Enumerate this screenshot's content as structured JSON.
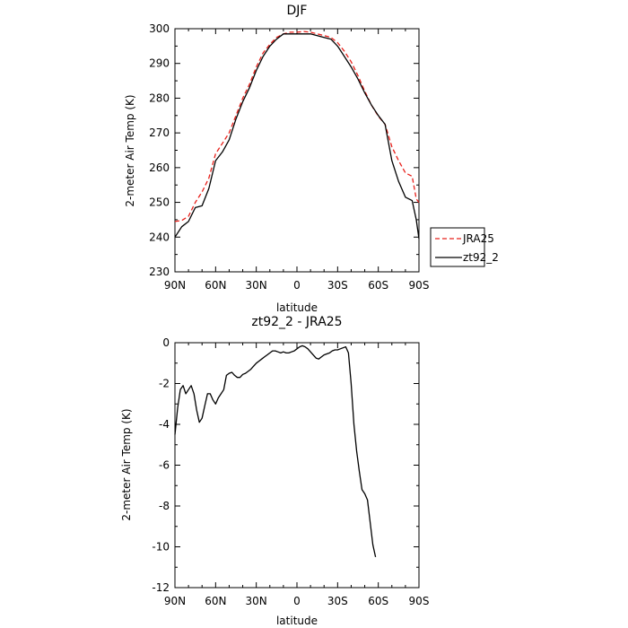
{
  "chart_data": [
    {
      "type": "line",
      "title": "DJF",
      "xlabel": "latitude",
      "ylabel": "2-meter Air Temp (K)",
      "x_tick_labels": [
        "90N",
        "60N",
        "30N",
        "0",
        "30S",
        "60S",
        "90S"
      ],
      "x_tick_values": [
        90,
        60,
        30,
        0,
        -30,
        -60,
        -90
      ],
      "xlim": [
        90,
        -90
      ],
      "ylim": [
        230,
        300
      ],
      "y_ticks": [
        230,
        240,
        250,
        260,
        270,
        280,
        290,
        300
      ],
      "legend": {
        "placement": "right"
      },
      "series": [
        {
          "name": "JRA25",
          "color": "#e8201a",
          "dash": "dashed",
          "points": [
            [
              90,
              244.5
            ],
            [
              85,
              244.8
            ],
            [
              80,
              246
            ],
            [
              75,
              250
            ],
            [
              70,
              253
            ],
            [
              65,
              257
            ],
            [
              60,
              264
            ],
            [
              55,
              267
            ],
            [
              50,
              270
            ],
            [
              45,
              275
            ],
            [
              40,
              280
            ],
            [
              35,
              284
            ],
            [
              30,
              289
            ],
            [
              25,
              293
            ],
            [
              20,
              295.5
            ],
            [
              15,
              297.5
            ],
            [
              10,
              298.5
            ],
            [
              5,
              299
            ],
            [
              0,
              299
            ],
            [
              -5,
              299.2
            ],
            [
              -10,
              299
            ],
            [
              -15,
              298.5
            ],
            [
              -20,
              298
            ],
            [
              -25,
              297.5
            ],
            [
              -30,
              296
            ],
            [
              -35,
              293.5
            ],
            [
              -40,
              290.5
            ],
            [
              -45,
              286.5
            ],
            [
              -50,
              282
            ],
            [
              -55,
              278
            ],
            [
              -60,
              274.8
            ],
            [
              -65,
              272.5
            ],
            [
              -70,
              266
            ],
            [
              -75,
              262
            ],
            [
              -80,
              258.5
            ],
            [
              -85,
              257.5
            ],
            [
              -88,
              251
            ],
            [
              -90,
              250
            ]
          ]
        },
        {
          "name": "zt92_2",
          "color": "#000000",
          "dash": "solid",
          "points": [
            [
              90,
              240
            ],
            [
              85,
              243
            ],
            [
              80,
              244.5
            ],
            [
              75,
              248.5
            ],
            [
              70,
              249
            ],
            [
              65,
              254
            ],
            [
              60,
              262
            ],
            [
              55,
              264.5
            ],
            [
              50,
              268
            ],
            [
              45,
              274
            ],
            [
              40,
              279
            ],
            [
              35,
              283
            ],
            [
              30,
              288
            ],
            [
              25,
              292
            ],
            [
              20,
              295
            ],
            [
              15,
              297
            ],
            [
              10,
              298.5
            ],
            [
              5,
              298.5
            ],
            [
              0,
              298.5
            ],
            [
              -5,
              298.5
            ],
            [
              -10,
              298.5
            ],
            [
              -15,
              298
            ],
            [
              -20,
              297.5
            ],
            [
              -25,
              297
            ],
            [
              -30,
              295
            ],
            [
              -35,
              292
            ],
            [
              -40,
              289
            ],
            [
              -45,
              285.5
            ],
            [
              -50,
              281.5
            ],
            [
              -55,
              278
            ],
            [
              -60,
              275
            ],
            [
              -65,
              272.5
            ],
            [
              -70,
              262
            ],
            [
              -75,
              256
            ],
            [
              -80,
              251.5
            ],
            [
              -85,
              250.5
            ],
            [
              -88,
              245
            ],
            [
              -90,
              239.5
            ]
          ]
        }
      ]
    },
    {
      "type": "line",
      "title": "zt92_2 - JRA25",
      "xlabel": "latitude",
      "ylabel": "2-meter Air Temp (K)",
      "x_tick_labels": [
        "90N",
        "60N",
        "30N",
        "0",
        "30S",
        "60S",
        "90S"
      ],
      "x_tick_values": [
        90,
        60,
        30,
        0,
        -30,
        -60,
        -90
      ],
      "xlim": [
        90,
        -90
      ],
      "ylim": [
        -12,
        0
      ],
      "y_ticks": [
        -12,
        -10,
        -8,
        -6,
        -4,
        -2,
        0
      ],
      "series": [
        {
          "name": "zt92_2 - JRA25",
          "color": "#000000",
          "dash": "solid",
          "points": [
            [
              90,
              -4.5
            ],
            [
              88,
              -3.2
            ],
            [
              86,
              -2.3
            ],
            [
              84,
              -2.1
            ],
            [
              82,
              -2.5
            ],
            [
              80,
              -2.3
            ],
            [
              78,
              -2.1
            ],
            [
              76,
              -2.5
            ],
            [
              74,
              -3.3
            ],
            [
              72,
              -3.9
            ],
            [
              70,
              -3.7
            ],
            [
              68,
              -3.1
            ],
            [
              66,
              -2.5
            ],
            [
              64,
              -2.5
            ],
            [
              62,
              -2.8
            ],
            [
              60,
              -3.0
            ],
            [
              58,
              -2.7
            ],
            [
              56,
              -2.5
            ],
            [
              54,
              -2.3
            ],
            [
              52,
              -1.6
            ],
            [
              50,
              -1.5
            ],
            [
              48,
              -1.45
            ],
            [
              46,
              -1.6
            ],
            [
              44,
              -1.7
            ],
            [
              42,
              -1.7
            ],
            [
              40,
              -1.55
            ],
            [
              38,
              -1.5
            ],
            [
              36,
              -1.4
            ],
            [
              34,
              -1.3
            ],
            [
              32,
              -1.15
            ],
            [
              30,
              -1.0
            ],
            [
              28,
              -0.9
            ],
            [
              26,
              -0.8
            ],
            [
              24,
              -0.7
            ],
            [
              22,
              -0.6
            ],
            [
              20,
              -0.5
            ],
            [
              18,
              -0.4
            ],
            [
              16,
              -0.4
            ],
            [
              14,
              -0.45
            ],
            [
              12,
              -0.5
            ],
            [
              10,
              -0.45
            ],
            [
              8,
              -0.5
            ],
            [
              6,
              -0.5
            ],
            [
              4,
              -0.45
            ],
            [
              2,
              -0.4
            ],
            [
              0,
              -0.3
            ],
            [
              -2,
              -0.2
            ],
            [
              -4,
              -0.15
            ],
            [
              -6,
              -0.2
            ],
            [
              -8,
              -0.3
            ],
            [
              -10,
              -0.45
            ],
            [
              -12,
              -0.6
            ],
            [
              -14,
              -0.75
            ],
            [
              -16,
              -0.8
            ],
            [
              -18,
              -0.7
            ],
            [
              -20,
              -0.6
            ],
            [
              -22,
              -0.55
            ],
            [
              -24,
              -0.5
            ],
            [
              -26,
              -0.4
            ],
            [
              -28,
              -0.35
            ],
            [
              -30,
              -0.35
            ],
            [
              -32,
              -0.3
            ],
            [
              -34,
              -0.25
            ],
            [
              -36,
              -0.2
            ],
            [
              -38,
              -0.5
            ],
            [
              -40,
              -2.0
            ],
            [
              -42,
              -4.0
            ],
            [
              -44,
              -5.3
            ],
            [
              -46,
              -6.3
            ],
            [
              -48,
              -7.2
            ],
            [
              -50,
              -7.4
            ],
            [
              -52,
              -7.7
            ],
            [
              -54,
              -8.8
            ],
            [
              -56,
              -9.9
            ],
            [
              -58,
              -10.5
            ]
          ]
        }
      ]
    }
  ]
}
